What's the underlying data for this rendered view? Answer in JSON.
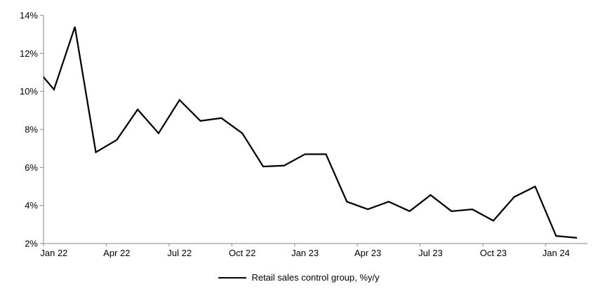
{
  "chart": {
    "legend": "Retail sales control group, %y/y"
  },
  "chart_data": {
    "type": "line",
    "title": "",
    "series_name": "Retail sales control group, %y/y",
    "categories": [
      "Jan 22",
      "Feb 22",
      "Mar 22",
      "Apr 22",
      "May 22",
      "Jun 22",
      "Jul 22",
      "Aug 22",
      "Sep 22",
      "Oct 22",
      "Nov 22",
      "Dec 22",
      "Jan 23",
      "Feb 23",
      "Mar 23",
      "Apr 23",
      "May 23",
      "Jun 23",
      "Jul 23",
      "Aug 23",
      "Sep 23",
      "Oct 23",
      "Nov 23",
      "Dec 23",
      "Jan 24",
      "Feb 24"
    ],
    "values": [
      10.1,
      13.4,
      6.8,
      7.45,
      9.05,
      7.8,
      9.55,
      8.45,
      8.6,
      7.8,
      6.05,
      6.1,
      6.7,
      6.7,
      4.2,
      3.8,
      4.2,
      3.7,
      4.55,
      3.7,
      3.8,
      3.2,
      4.45,
      5.0,
      2.4,
      2.3
    ],
    "lead_in_point": {
      "category": "Dec 21",
      "value": 11.4,
      "note": "line enters plot clipped at left axis at ~10.75%"
    },
    "x_tick_labels": [
      "Jan 22",
      "Apr 22",
      "Jul 22",
      "Oct 22",
      "Jan 23",
      "Apr 23",
      "Jul 23",
      "Oct 23",
      "Jan 24"
    ],
    "x_label_interval_months": 3,
    "y_ticks": [
      "2%",
      "4%",
      "6%",
      "8%",
      "10%",
      "12%",
      "14%"
    ],
    "y_tick_values": [
      2,
      4,
      6,
      8,
      10,
      12,
      14
    ],
    "ylim": [
      2,
      14
    ],
    "y_unit": "%",
    "grid": false,
    "legend_position": "bottom-center",
    "line_color": "#000000",
    "axis_color": "#868686",
    "background_color": "#ffffff"
  }
}
